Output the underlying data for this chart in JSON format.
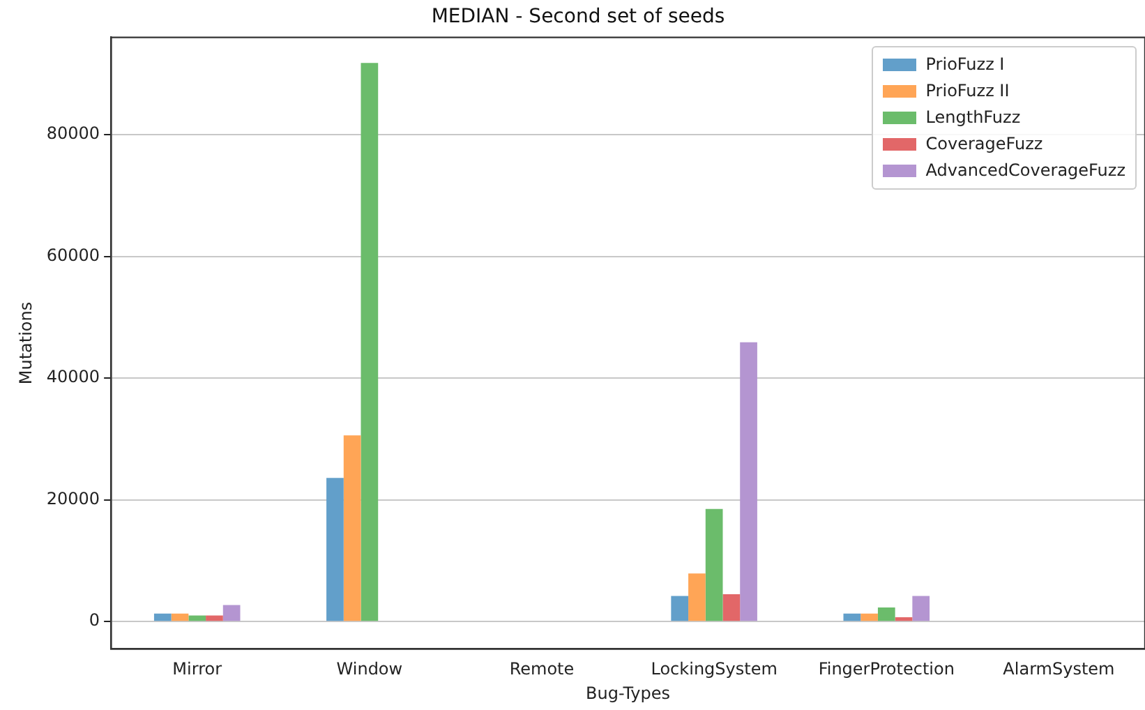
{
  "chart_data": {
    "type": "bar",
    "title": "MEDIAN - Second set of seeds",
    "xlabel": "Bug-Types",
    "ylabel": "Mutations",
    "categories": [
      "Mirror",
      "Window",
      "Remote",
      "LockingSystem",
      "FingerProtection",
      "AlarmSystem"
    ],
    "series": [
      {
        "name": "PrioFuzz I",
        "color": "#629fca",
        "values": [
          1300,
          23600,
          0,
          4200,
          1300,
          0
        ]
      },
      {
        "name": "PrioFuzz II",
        "color": "#ffa556",
        "values": [
          1300,
          30600,
          0,
          7900,
          1300,
          0
        ]
      },
      {
        "name": "LengthFuzz",
        "color": "#6bbc6b",
        "values": [
          1000,
          91800,
          0,
          18500,
          2300,
          0
        ]
      },
      {
        "name": "CoverageFuzz",
        "color": "#e26768",
        "values": [
          1000,
          0,
          0,
          4500,
          700,
          0
        ]
      },
      {
        "name": "AdvancedCoverageFuzz",
        "color": "#b495d1",
        "values": [
          2700,
          0,
          0,
          45900,
          4200,
          0
        ]
      }
    ],
    "ylim": [
      -4500,
      96000
    ],
    "yticks": [
      0,
      20000,
      40000,
      60000,
      80000
    ],
    "grid": "y",
    "legend": "top right"
  }
}
